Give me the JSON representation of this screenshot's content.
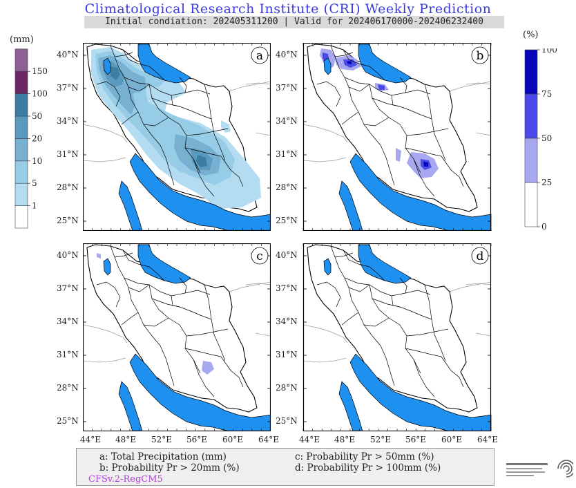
{
  "header": {
    "title": "Climatological Research Institute (CRI) Weekly Prediction",
    "subtitle": "Initial condiation: 202405311200 | Valid for 202406170000-202406232400"
  },
  "left_colorbar": {
    "unit": "(mm)",
    "levels": [
      "1",
      "5",
      "10",
      "20",
      "50",
      "100",
      "150"
    ],
    "colors": [
      "#ffffff",
      "#b4dcf0",
      "#96cce6",
      "#78b0d2",
      "#5a9abe",
      "#3c7ea2",
      "#6a2866",
      "#8e5e96"
    ]
  },
  "right_colorbar": {
    "unit": "(%)",
    "levels": [
      "0",
      "25",
      "50",
      "75",
      "100"
    ],
    "colors": [
      "#ffffff",
      "#a8a8f0",
      "#4a4ae8",
      "#0808b8"
    ]
  },
  "panels": [
    {
      "letter": "a"
    },
    {
      "letter": "b"
    },
    {
      "letter": "c"
    },
    {
      "letter": "d"
    }
  ],
  "axes": {
    "lat_ticks": [
      "40°N",
      "37°N",
      "34°N",
      "31°N",
      "28°N",
      "25°N"
    ],
    "lon_ticks": [
      "44°E",
      "48°E",
      "52°E",
      "56°E",
      "60°E",
      "64°E"
    ]
  },
  "legend": {
    "a": "a: Total Precipitation (mm)",
    "b": "b: Probability Pr > 20mm (%)",
    "c": "c: Probability Pr > 50mm (%)",
    "d": "d: Probability Pr > 100mm (%)",
    "model": "CFSv.2-RegCM5"
  },
  "colors": {
    "sea": "#1e90f0",
    "border": "#000000",
    "title": "#3a3ae0",
    "model_label": "#b040d8"
  }
}
